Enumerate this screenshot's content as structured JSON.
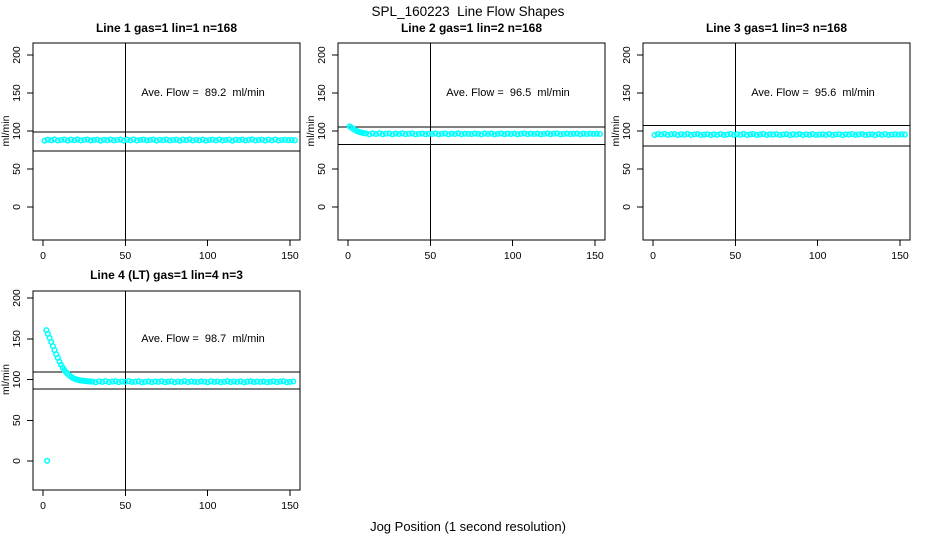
{
  "page_title": "SPL_160223  Line Flow Shapes",
  "x_axis_label": "Jog Position (1 second resolution)",
  "colors": {
    "points": "#00ffff",
    "axis": "#000000",
    "background": "#ffffff"
  },
  "chart_data": [
    {
      "type": "scatter",
      "title": "Line 1 gas=1 lin=1 n=168",
      "gas": 1,
      "lin": 1,
      "n": 168,
      "ave_flow": 89.2,
      "ave_flow_text": "Ave. Flow =  89.2  ml/min",
      "ylabel": "ml/min",
      "x_ticks": [
        0,
        50,
        100,
        150
      ],
      "y_ticks": [
        0,
        50,
        100,
        150,
        200
      ],
      "xlim": [
        0,
        150
      ],
      "ylim": [
        0,
        200
      ],
      "vline_x": 50,
      "hlines": [
        98.5,
        74
      ],
      "points_segments": [
        {
          "x_start": 1,
          "x_step": 2,
          "y": [
            87.3,
            88.5,
            87.8,
            89.0,
            87.5,
            88.2,
            88.7,
            87.4,
            88.6,
            87.9,
            88.9,
            87.6,
            88.3,
            88.8,
            87.5,
            88.1,
            88.6,
            87.3,
            88.4,
            87.9,
            88.8,
            87.6,
            88.2,
            88.7,
            87.4,
            88.5,
            87.8,
            88.9,
            87.5,
            88.3,
            88.6,
            87.7,
            88.1,
            88.8,
            87.4,
            88.4,
            87.9,
            88.7,
            87.6,
            88.2,
            88.5,
            87.3,
            88.6,
            88.0,
            88.9,
            87.5,
            88.3,
            87.8,
            88.7,
            87.4,
            88.1,
            88.5,
            87.7,
            88.8,
            87.6,
            88.2,
            88.6,
            87.3,
            88.4,
            88.0,
            88.7,
            87.5,
            88.3,
            88.9,
            87.6,
            88.1,
            88.5,
            87.4,
            88.6,
            87.8,
            88.8,
            87.5,
            88.2,
            88.4,
            87.9,
            88.0,
            87.7
          ]
        }
      ]
    },
    {
      "type": "scatter",
      "title": "Line 2 gas=1 lin=2 n=168",
      "gas": 1,
      "lin": 2,
      "n": 168,
      "ave_flow": 96.5,
      "ave_flow_text": "Ave. Flow =  96.5  ml/min",
      "ylabel": "ml/min",
      "x_ticks": [
        0,
        50,
        100,
        150
      ],
      "y_ticks": [
        0,
        50,
        100,
        150,
        200
      ],
      "xlim": [
        0,
        150
      ],
      "ylim": [
        0,
        200
      ],
      "vline_x": 50,
      "hlines": [
        105,
        82.5
      ],
      "points_segments": [
        {
          "x_start": 1,
          "x_step": 1,
          "y": [
            106.0,
            104.8,
            103.2,
            101.6,
            100.4,
            99.4,
            98.6,
            98.0,
            97.5,
            97.1,
            96.8
          ]
        },
        {
          "x_start": 13,
          "x_step": 2,
          "y": [
            95.6,
            96.8,
            96.1,
            97.0,
            95.8,
            96.4,
            96.9,
            95.7,
            96.6,
            96.0,
            97.0,
            95.9,
            96.3,
            96.8,
            95.6,
            96.2,
            96.7,
            95.8,
            96.5,
            96.0,
            96.9,
            95.7,
            96.3,
            96.8,
            95.6,
            96.4,
            96.1,
            97.0,
            95.8,
            96.5,
            96.2,
            95.9,
            96.7,
            96.3,
            95.6,
            96.8,
            96.0,
            96.6,
            95.7,
            96.2,
            96.9,
            95.8,
            96.4,
            96.1,
            96.7,
            95.6,
            96.3,
            96.8,
            95.9,
            96.5,
            96.0,
            96.6,
            95.7,
            96.2,
            96.8,
            95.8,
            96.4,
            96.9,
            95.6,
            96.1,
            96.6,
            95.9,
            96.3,
            96.7,
            95.7,
            96.5,
            96.0,
            96.4,
            96.2,
            96.5,
            96.1
          ]
        }
      ]
    },
    {
      "type": "scatter",
      "title": "Line 3 gas=1 lin=3 n=168",
      "gas": 1,
      "lin": 3,
      "n": 168,
      "ave_flow": 95.6,
      "ave_flow_text": "Ave. Flow =  95.6  ml/min",
      "ylabel": "ml/min",
      "x_ticks": [
        0,
        50,
        100,
        150
      ],
      "y_ticks": [
        0,
        50,
        100,
        150,
        200
      ],
      "xlim": [
        0,
        150
      ],
      "ylim": [
        0,
        200
      ],
      "vline_x": 50,
      "hlines": [
        107.5,
        80.5
      ],
      "points_segments": [
        {
          "x_start": 1,
          "x_step": 2,
          "y": [
            94.7,
            95.9,
            95.2,
            96.3,
            94.9,
            95.6,
            96.0,
            94.8,
            95.7,
            95.1,
            96.2,
            94.9,
            95.5,
            96.0,
            94.7,
            95.3,
            95.8,
            94.6,
            95.6,
            95.0,
            96.1,
            94.8,
            95.4,
            95.9,
            94.7,
            95.7,
            95.1,
            96.2,
            94.8,
            95.5,
            95.9,
            94.9,
            95.3,
            96.0,
            94.7,
            95.6,
            95.2,
            95.9,
            94.8,
            95.4,
            95.8,
            94.6,
            95.7,
            95.1,
            96.1,
            94.8,
            95.5,
            95.0,
            95.9,
            94.7,
            95.3,
            95.7,
            94.9,
            96.0,
            94.8,
            95.4,
            95.8,
            94.6,
            95.6,
            95.2,
            95.9,
            94.7,
            95.5,
            96.1,
            94.8,
            95.3,
            95.7,
            94.6,
            95.8,
            95.0,
            96.0,
            94.7,
            95.4,
            95.6,
            95.1,
            95.8,
            95.2
          ]
        }
      ]
    },
    {
      "type": "scatter",
      "title": "Line 4 (LT) gas=1 lin=4 n=3",
      "gas": 1,
      "lin": 4,
      "n": 3,
      "ave_flow": 98.7,
      "ave_flow_text": "Ave. Flow =  98.7  ml/min",
      "ylabel": "ml/min",
      "x_ticks": [
        0,
        50,
        100,
        150
      ],
      "y_ticks": [
        0,
        50,
        100,
        150,
        200
      ],
      "xlim": [
        0,
        150
      ],
      "ylim": [
        0,
        200
      ],
      "vline_x": 50,
      "hlines": [
        109,
        88.3
      ],
      "points_segments": [
        {
          "x_start": 2,
          "x_step": 1,
          "y": [
            160.5,
            156.0,
            151.0,
            146.0,
            141.0,
            136.0,
            131.0,
            126.5,
            122.0,
            118.0,
            114.5,
            111.5,
            109.0,
            106.8,
            105.0,
            103.4,
            102.1,
            101.1,
            100.3,
            99.7,
            99.2,
            98.8,
            98.5,
            98.2,
            98.0,
            97.8,
            97.7,
            97.6,
            97.5
          ]
        },
        {
          "x_start": 32,
          "x_step": 2,
          "y": [
            96.6,
            97.8,
            97.1,
            98.0,
            96.8,
            97.4,
            97.9,
            96.7,
            97.6,
            97.0,
            98.0,
            96.9,
            97.3,
            97.8,
            96.6,
            97.2,
            97.7,
            96.8,
            97.5,
            97.0,
            97.9,
            96.7,
            97.3,
            97.8,
            96.6,
            97.4,
            97.1,
            98.0,
            96.8,
            97.5,
            97.2,
            96.9,
            97.7,
            97.3,
            96.6,
            97.8,
            97.0,
            97.6,
            96.7,
            97.2,
            97.9,
            96.8,
            97.4,
            97.1,
            97.7,
            96.6,
            97.3,
            97.8,
            96.9,
            97.5,
            97.0,
            97.6,
            96.7,
            97.2,
            97.8,
            96.8,
            97.4,
            97.9,
            96.6,
            97.1,
            97.5
          ]
        },
        {
          "x_start": 2.5,
          "x_step": 1,
          "y": [
            0.3
          ]
        }
      ]
    }
  ]
}
